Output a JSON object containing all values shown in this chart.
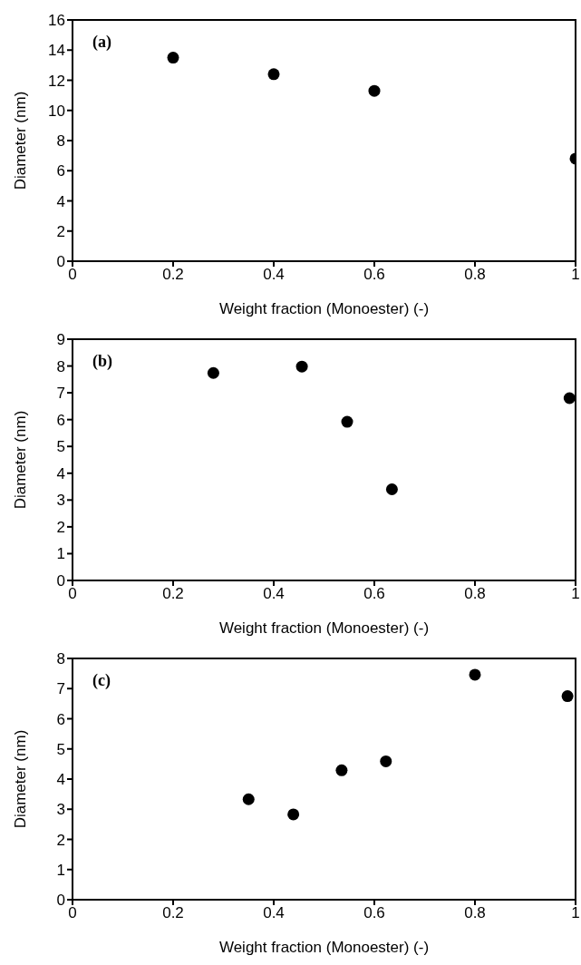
{
  "chart_data": [
    {
      "type": "scatter",
      "annotations": [
        "(a)"
      ],
      "xlabel": "Weight fraction (Monoester) (-)",
      "ylabel": "Diameter (nm)",
      "x": [
        0.2,
        0.4,
        0.6,
        1.0
      ],
      "values": [
        13.5,
        12.4,
        11.3,
        6.8
      ],
      "color": "#000000",
      "marker": "circle",
      "xlim": [
        0,
        1
      ],
      "xticks": [
        0,
        0.2,
        0.4,
        0.6,
        0.8,
        1
      ],
      "ylim": [
        0,
        16
      ],
      "yticks": [
        0,
        2,
        4,
        6,
        8,
        10,
        12,
        14,
        16
      ],
      "grid": false,
      "legend": false
    },
    {
      "type": "scatter",
      "annotations": [
        "(b)"
      ],
      "xlabel": "Weight fraction (Monoester) (-)",
      "ylabel": "Diameter (nm)",
      "x": [
        0.28,
        0.456,
        0.546,
        0.635,
        0.988
      ],
      "values": [
        7.74,
        7.98,
        5.92,
        3.4,
        6.8
      ],
      "color": "#000000",
      "marker": "circle",
      "xlim": [
        0,
        1
      ],
      "xticks": [
        0,
        0.2,
        0.4,
        0.6,
        0.8,
        1
      ],
      "ylim": [
        0,
        9
      ],
      "yticks": [
        0,
        1,
        2,
        3,
        4,
        5,
        6,
        7,
        8,
        9
      ],
      "grid": false,
      "legend": false
    },
    {
      "type": "scatter",
      "annotations": [
        "(c)"
      ],
      "xlabel": "Weight fraction (Monoester) (-)",
      "ylabel": "Diameter (nm)",
      "x": [
        0.35,
        0.439,
        0.535,
        0.623,
        0.8,
        0.984
      ],
      "values": [
        3.33,
        2.83,
        4.29,
        4.59,
        7.46,
        6.75
      ],
      "color": "#000000",
      "marker": "circle",
      "xlim": [
        0,
        1
      ],
      "xticks": [
        0,
        0.2,
        0.4,
        0.6,
        0.8,
        1
      ],
      "ylim": [
        0,
        8
      ],
      "yticks": [
        0,
        1,
        2,
        3,
        4,
        5,
        6,
        7,
        8
      ],
      "grid": false,
      "legend": false
    }
  ]
}
